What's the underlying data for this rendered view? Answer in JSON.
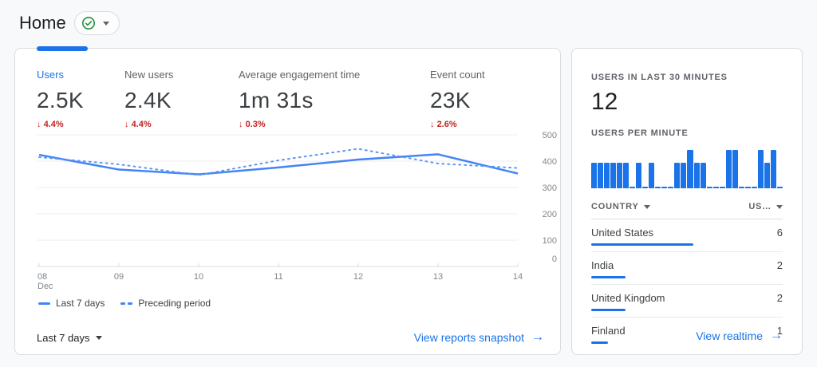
{
  "header": {
    "title": "Home",
    "status_icon": "check-circle"
  },
  "overview_card": {
    "metrics": [
      {
        "label": "Users",
        "value": "2.5K",
        "arrow": "↓",
        "delta": "4.4%",
        "selected": true
      },
      {
        "label": "New users",
        "value": "2.4K",
        "arrow": "↓",
        "delta": "4.4%",
        "selected": false
      },
      {
        "label": "Average engagement time",
        "value": "1m 31s",
        "arrow": "↓",
        "delta": "0.3%",
        "selected": false
      },
      {
        "label": "Event count",
        "value": "23K",
        "arrow": "↓",
        "delta": "2.6%",
        "selected": false
      }
    ],
    "period_selector": "Last 7 days",
    "snapshot_link": "View reports snapshot",
    "snapshot_arrow": "→"
  },
  "chart_data": [
    {
      "type": "line",
      "x": [
        "08",
        "09",
        "10",
        "11",
        "12",
        "13",
        "14"
      ],
      "x_sublabels": [
        "Dec",
        "",
        "",
        "",
        "",
        "",
        ""
      ],
      "series": [
        {
          "name": "Last 7 days",
          "style": "solid",
          "values": [
            424,
            368,
            350,
            376,
            406,
            426,
            353
          ]
        },
        {
          "name": "Preceding period",
          "style": "dashed",
          "values": [
            415,
            388,
            347,
            403,
            447,
            391,
            374
          ]
        }
      ],
      "ylim": [
        0,
        500
      ],
      "yticks": [
        0,
        100,
        200,
        300,
        400,
        500
      ],
      "grid": true,
      "legend_position": "bottom-left",
      "line_color": "#4285f4"
    },
    {
      "type": "bar",
      "title": "USERS PER MINUTE",
      "values": [
        2,
        2,
        2,
        2,
        2,
        2,
        0,
        2,
        0,
        2,
        0,
        0,
        0,
        2,
        2,
        3,
        2,
        2,
        0,
        0,
        0,
        3,
        3,
        0,
        0,
        0,
        3,
        2,
        3,
        0
      ],
      "ylim": [
        0,
        3
      ],
      "bar_color": "#1a73e8"
    }
  ],
  "realtime_card": {
    "last30_label": "USERS IN LAST 30 MINUTES",
    "last30_value": "12",
    "per_minute_label": "USERS PER MINUTE",
    "table": {
      "col_country": "COUNTRY",
      "col_users": "US…",
      "max_users": 6,
      "rows": [
        {
          "country": "United States",
          "users": "6"
        },
        {
          "country": "India",
          "users": "2"
        },
        {
          "country": "United Kingdom",
          "users": "2"
        },
        {
          "country": "Finland",
          "users": "1"
        }
      ]
    },
    "realtime_link": "View realtime",
    "arrow": "→"
  },
  "colors": {
    "accent_blue": "#1a73e8",
    "chart_line": "#4285f4",
    "delta_red": "#c5221f",
    "status_green": "#1e8e3e",
    "grid": "#eceef0"
  }
}
